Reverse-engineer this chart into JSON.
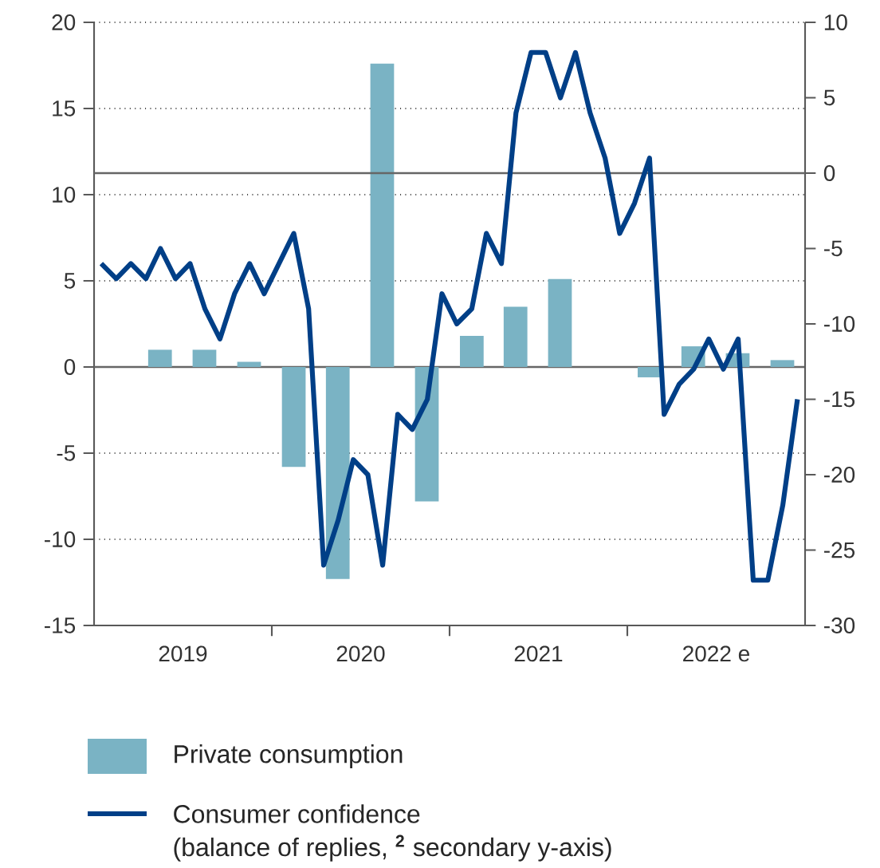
{
  "chart_data": {
    "type": "bar",
    "series": [
      {
        "name": "Private consumption",
        "type": "bar",
        "color": "#7ab3c4",
        "x": [
          "2019-02-15",
          "2019-05-15",
          "2019-08-15",
          "2019-11-15",
          "2020-02-15",
          "2020-05-15",
          "2020-08-15",
          "2020-11-15",
          "2021-02-15",
          "2021-05-15",
          "2021-08-15",
          "2021-11-15",
          "2022-02-15",
          "2022-05-15",
          "2022-08-15",
          "2022-11-15"
        ],
        "values": [
          0,
          1.0,
          1.0,
          0.3,
          -5.8,
          -12.3,
          17.6,
          -7.8,
          1.8,
          3.5,
          5.1,
          0,
          -0.6,
          1.2,
          0.8,
          0.4
        ]
      },
      {
        "name": "Consumer confidence",
        "type": "line",
        "axis": "y2",
        "color": "#003f87",
        "x": [
          "2019-01-16",
          "2019-02-15",
          "2019-03-16",
          "2019-04-16",
          "2019-05-16",
          "2019-06-16",
          "2019-07-16",
          "2019-08-16",
          "2019-09-16",
          "2019-10-16",
          "2019-11-16",
          "2019-12-16",
          "2020-01-16",
          "2020-02-15",
          "2020-03-16",
          "2020-04-16",
          "2020-05-16",
          "2020-06-16",
          "2020-07-16",
          "2020-08-16",
          "2020-09-16",
          "2020-10-16",
          "2020-11-16",
          "2020-12-16",
          "2021-01-16",
          "2021-02-15",
          "2021-03-16",
          "2021-04-16",
          "2021-05-16",
          "2021-06-16",
          "2021-07-16",
          "2021-08-16",
          "2021-09-16",
          "2021-10-16",
          "2021-11-16",
          "2021-12-16",
          "2022-01-16",
          "2022-02-15",
          "2022-03-16",
          "2022-04-16",
          "2022-05-16",
          "2022-06-16",
          "2022-07-16",
          "2022-08-16",
          "2022-09-16",
          "2022-10-16",
          "2022-11-16",
          "2022-12-16"
        ],
        "values": [
          -6,
          -7,
          -6,
          -7,
          -5,
          -7,
          -6,
          -9,
          -11,
          -8,
          -6,
          -8,
          -6,
          -4,
          -9,
          -26,
          -23,
          -19,
          -20,
          -26,
          -16,
          -17,
          -15,
          -8,
          -10,
          -9,
          -4,
          -6,
          4,
          8,
          8,
          5,
          8,
          4,
          1,
          -4,
          -2,
          1,
          -16,
          -14,
          -13,
          -11,
          -13,
          -11,
          -27,
          -27,
          -22,
          -15
        ]
      }
    ],
    "xlim": [
      "2019-01-01",
      "2023-01-01"
    ],
    "xticks": [
      {
        "value": "2019-07-01",
        "label": "2019"
      },
      {
        "value": "2020-01-01",
        "label": null
      },
      {
        "value": "2020-07-01",
        "label": "2020"
      },
      {
        "value": "2021-01-01",
        "label": null
      },
      {
        "value": "2021-07-01",
        "label": "2021"
      },
      {
        "value": "2022-01-01",
        "label": null
      },
      {
        "value": "2022-07-01",
        "label": "2022 e"
      }
    ],
    "ylim": [
      -15,
      20
    ],
    "yticks": [
      -15,
      -10,
      -5,
      0,
      5,
      10,
      15,
      20
    ],
    "y2lim": [
      -30,
      10
    ],
    "y2ticks": [
      -30,
      -25,
      -20,
      -15,
      -10,
      -5,
      0,
      5,
      10
    ],
    "grid": "y",
    "legend": "bottom",
    "annotations": [
      "(balance of replies, **$^{2}$** secondary y-axis)"
    ]
  }
}
